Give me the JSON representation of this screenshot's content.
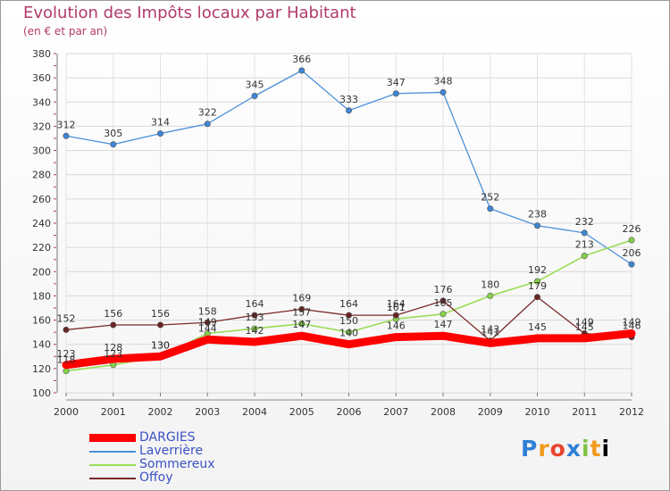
{
  "title": "Evolution des Impôts locaux par Habitant",
  "subtitle": "(en € et par an)",
  "logo": "Proxiti",
  "chart_data": {
    "type": "line",
    "title": "Evolution des Impôts locaux par Habitant",
    "ylabel": "(en € et par an)",
    "xlabel": "",
    "ylim": [
      100,
      380
    ],
    "ytick_step": 20,
    "grid": true,
    "x": [
      "2000",
      "2001",
      "2002",
      "2003",
      "2004",
      "2005",
      "2006",
      "2007",
      "2008",
      "2009",
      "2010",
      "2011",
      "2012"
    ],
    "series": [
      {
        "name": "DARGIES",
        "color": "#ff0000",
        "values": [
          123,
          128,
          130,
          144,
          142,
          147,
          140,
          146,
          147,
          141,
          145,
          145,
          149
        ]
      },
      {
        "name": "Laverrière",
        "color": "#4a90d9",
        "values": [
          312,
          305,
          314,
          322,
          345,
          366,
          333,
          347,
          348,
          252,
          238,
          232,
          206
        ]
      },
      {
        "name": "Sommereux",
        "color": "#99dd55",
        "values": [
          118,
          123,
          130,
          149,
          153,
          157,
          150,
          161,
          165,
          180,
          192,
          213,
          226
        ]
      },
      {
        "name": "Offoy",
        "color": "#7a2a2a",
        "values": [
          152,
          156,
          156,
          158,
          164,
          169,
          164,
          164,
          176,
          143,
          179,
          149,
          146
        ]
      }
    ]
  }
}
